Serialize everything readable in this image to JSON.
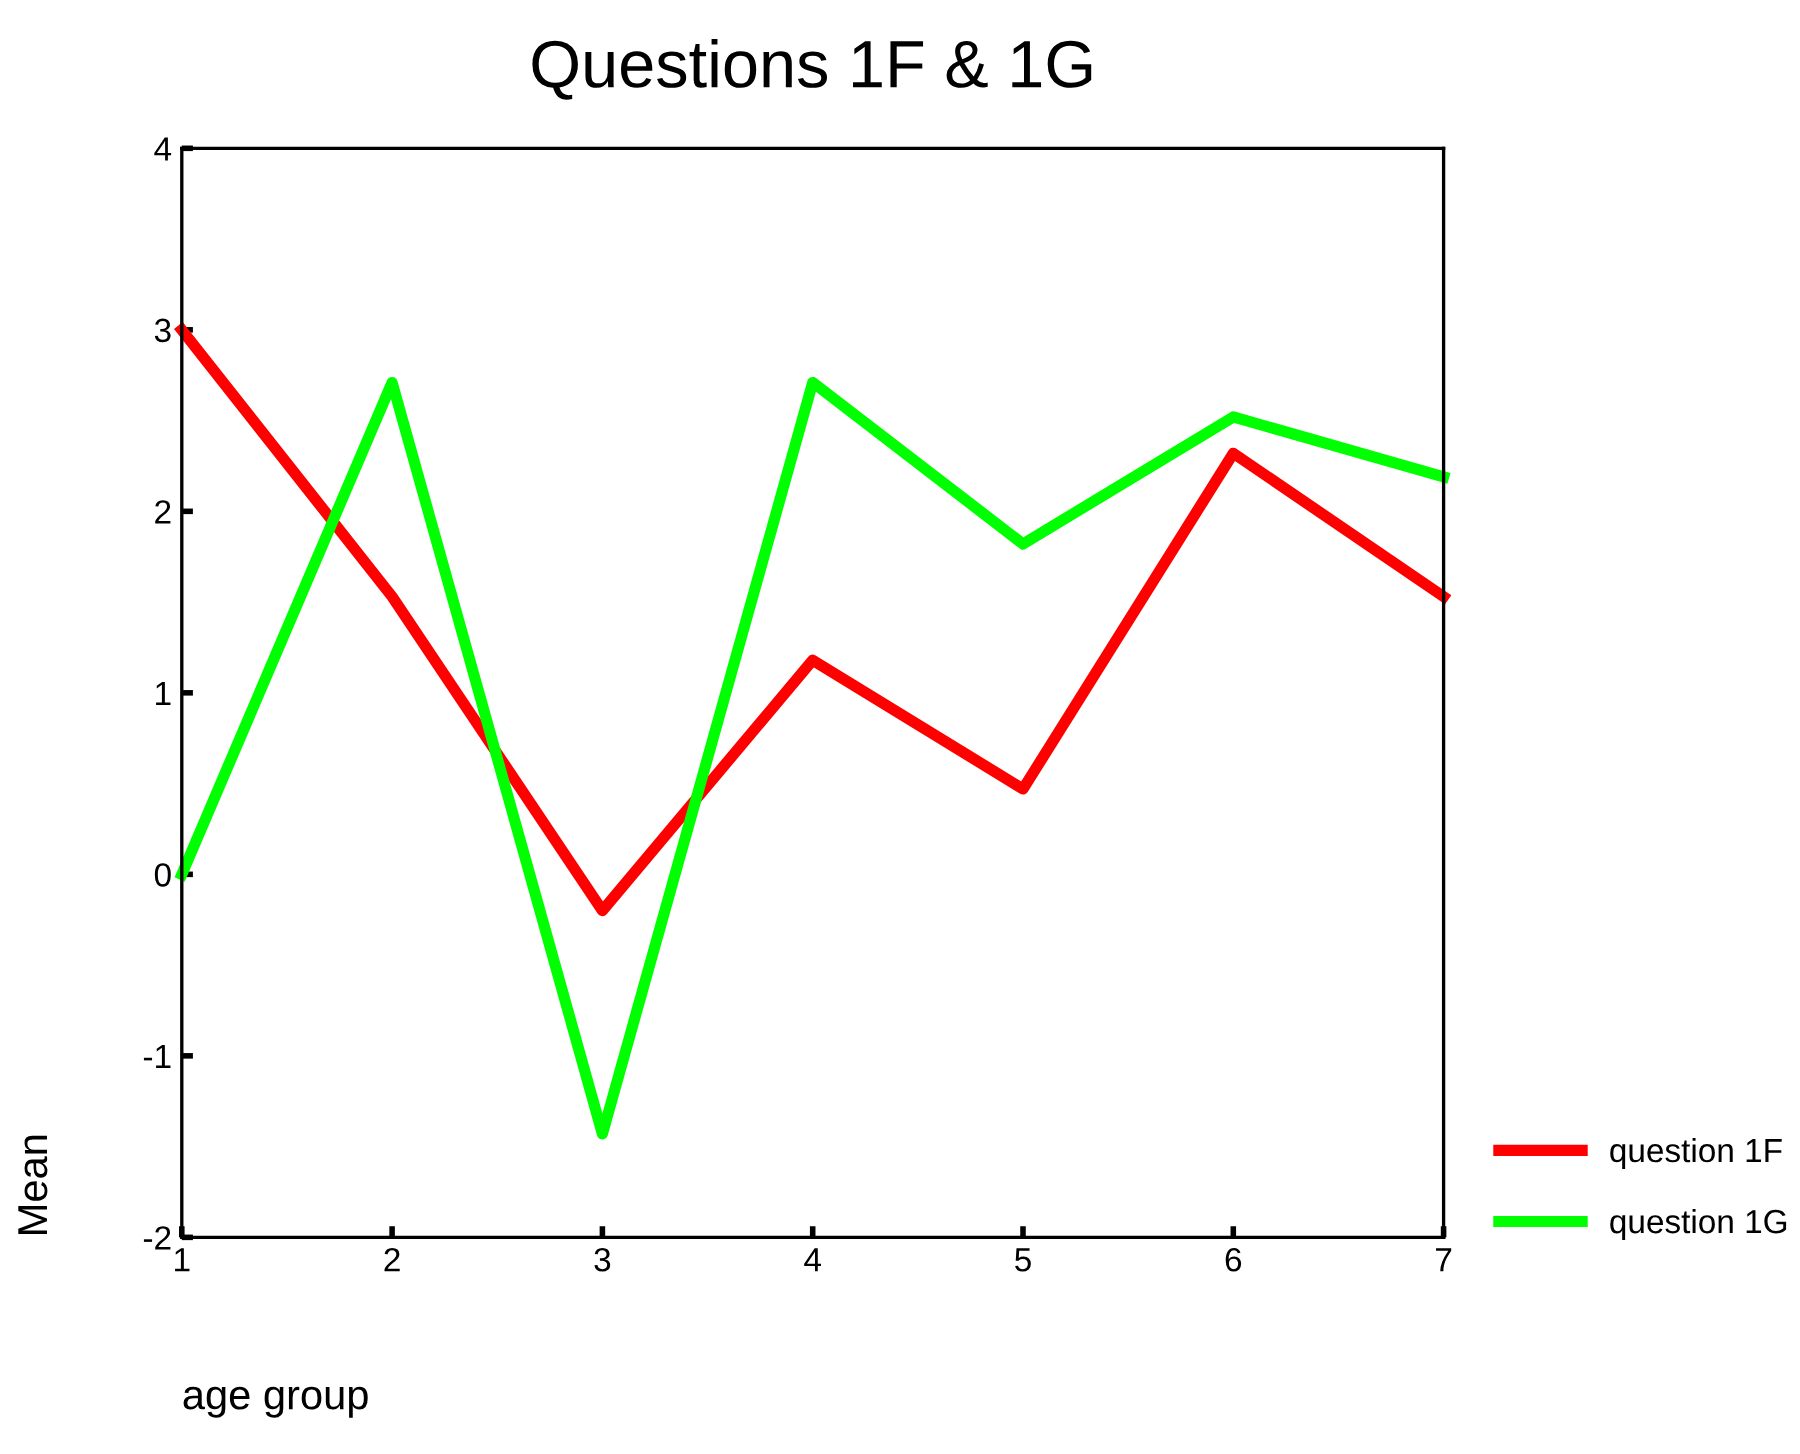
{
  "chart_data": {
    "type": "line",
    "title": "Questions 1F & 1G",
    "xlabel": "age group",
    "ylabel": "Mean",
    "x": [
      1,
      2,
      3,
      4,
      5,
      6,
      7
    ],
    "series": [
      {
        "name": "question 1F",
        "color": "#ff0000",
        "values": [
          3.0,
          1.53,
          -0.2,
          1.18,
          0.47,
          2.32,
          1.53
        ]
      },
      {
        "name": "question 1G",
        "color": "#00ff00",
        "values": [
          0.0,
          2.71,
          -1.43,
          2.71,
          1.82,
          2.52,
          2.19
        ]
      }
    ],
    "xlim": [
      1,
      7
    ],
    "xticks": [
      1,
      2,
      3,
      4,
      5,
      6,
      7
    ],
    "ylim": [
      -2,
      4
    ],
    "yticks": [
      -2,
      -1,
      0,
      1,
      2,
      3,
      4
    ],
    "grid": false,
    "legend": "bottom right",
    "marker": "none",
    "line_style": "solid"
  }
}
